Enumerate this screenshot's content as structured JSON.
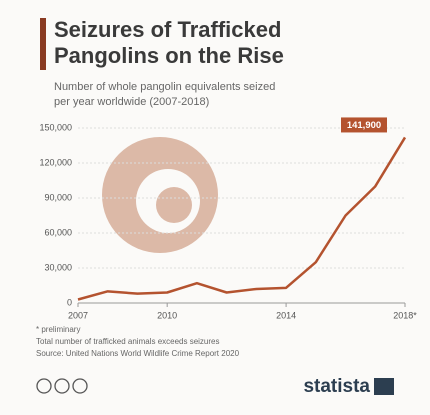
{
  "chart_data": {
    "type": "line",
    "title": [
      "Seizures of Trafficked",
      "Pangolins on the Rise"
    ],
    "subtitle": [
      "Number of whole pangolin equivalents seized",
      "per year worldwide (2007-2018)"
    ],
    "x": [
      2007,
      2008,
      2009,
      2010,
      2011,
      2012,
      2013,
      2014,
      2015,
      2016,
      2017,
      2018
    ],
    "series": [
      {
        "name": "Pangolin equivalents seized",
        "color": "#b4532f",
        "values": [
          3000,
          10000,
          8000,
          9000,
          17000,
          9000,
          12000,
          13000,
          35000,
          75000,
          100000,
          141900
        ],
        "value_labels": [
          null,
          null,
          null,
          null,
          null,
          null,
          null,
          null,
          null,
          null,
          null,
          "141,900"
        ]
      }
    ],
    "xlim": [
      2007,
      2018
    ],
    "xticks": [
      2007,
      2010,
      2014,
      {
        "value": 2018,
        "label": "2018*"
      }
    ],
    "ylim": [
      0,
      150000
    ],
    "yticks": [
      0,
      {
        "value": 30000,
        "label": "30,000"
      },
      {
        "value": 60000,
        "label": "60,000"
      },
      {
        "value": 90000,
        "label": "90,000"
      },
      {
        "value": 120000,
        "label": "120,000"
      },
      {
        "value": 150000,
        "label": "150,000"
      }
    ],
    "grid": true,
    "notes": [
      "* preliminary",
      "Total number of trafficked animals exceeds seizures",
      "Source: United Nations World Wildlife Crime Report 2020"
    ],
    "brand": "statista"
  }
}
